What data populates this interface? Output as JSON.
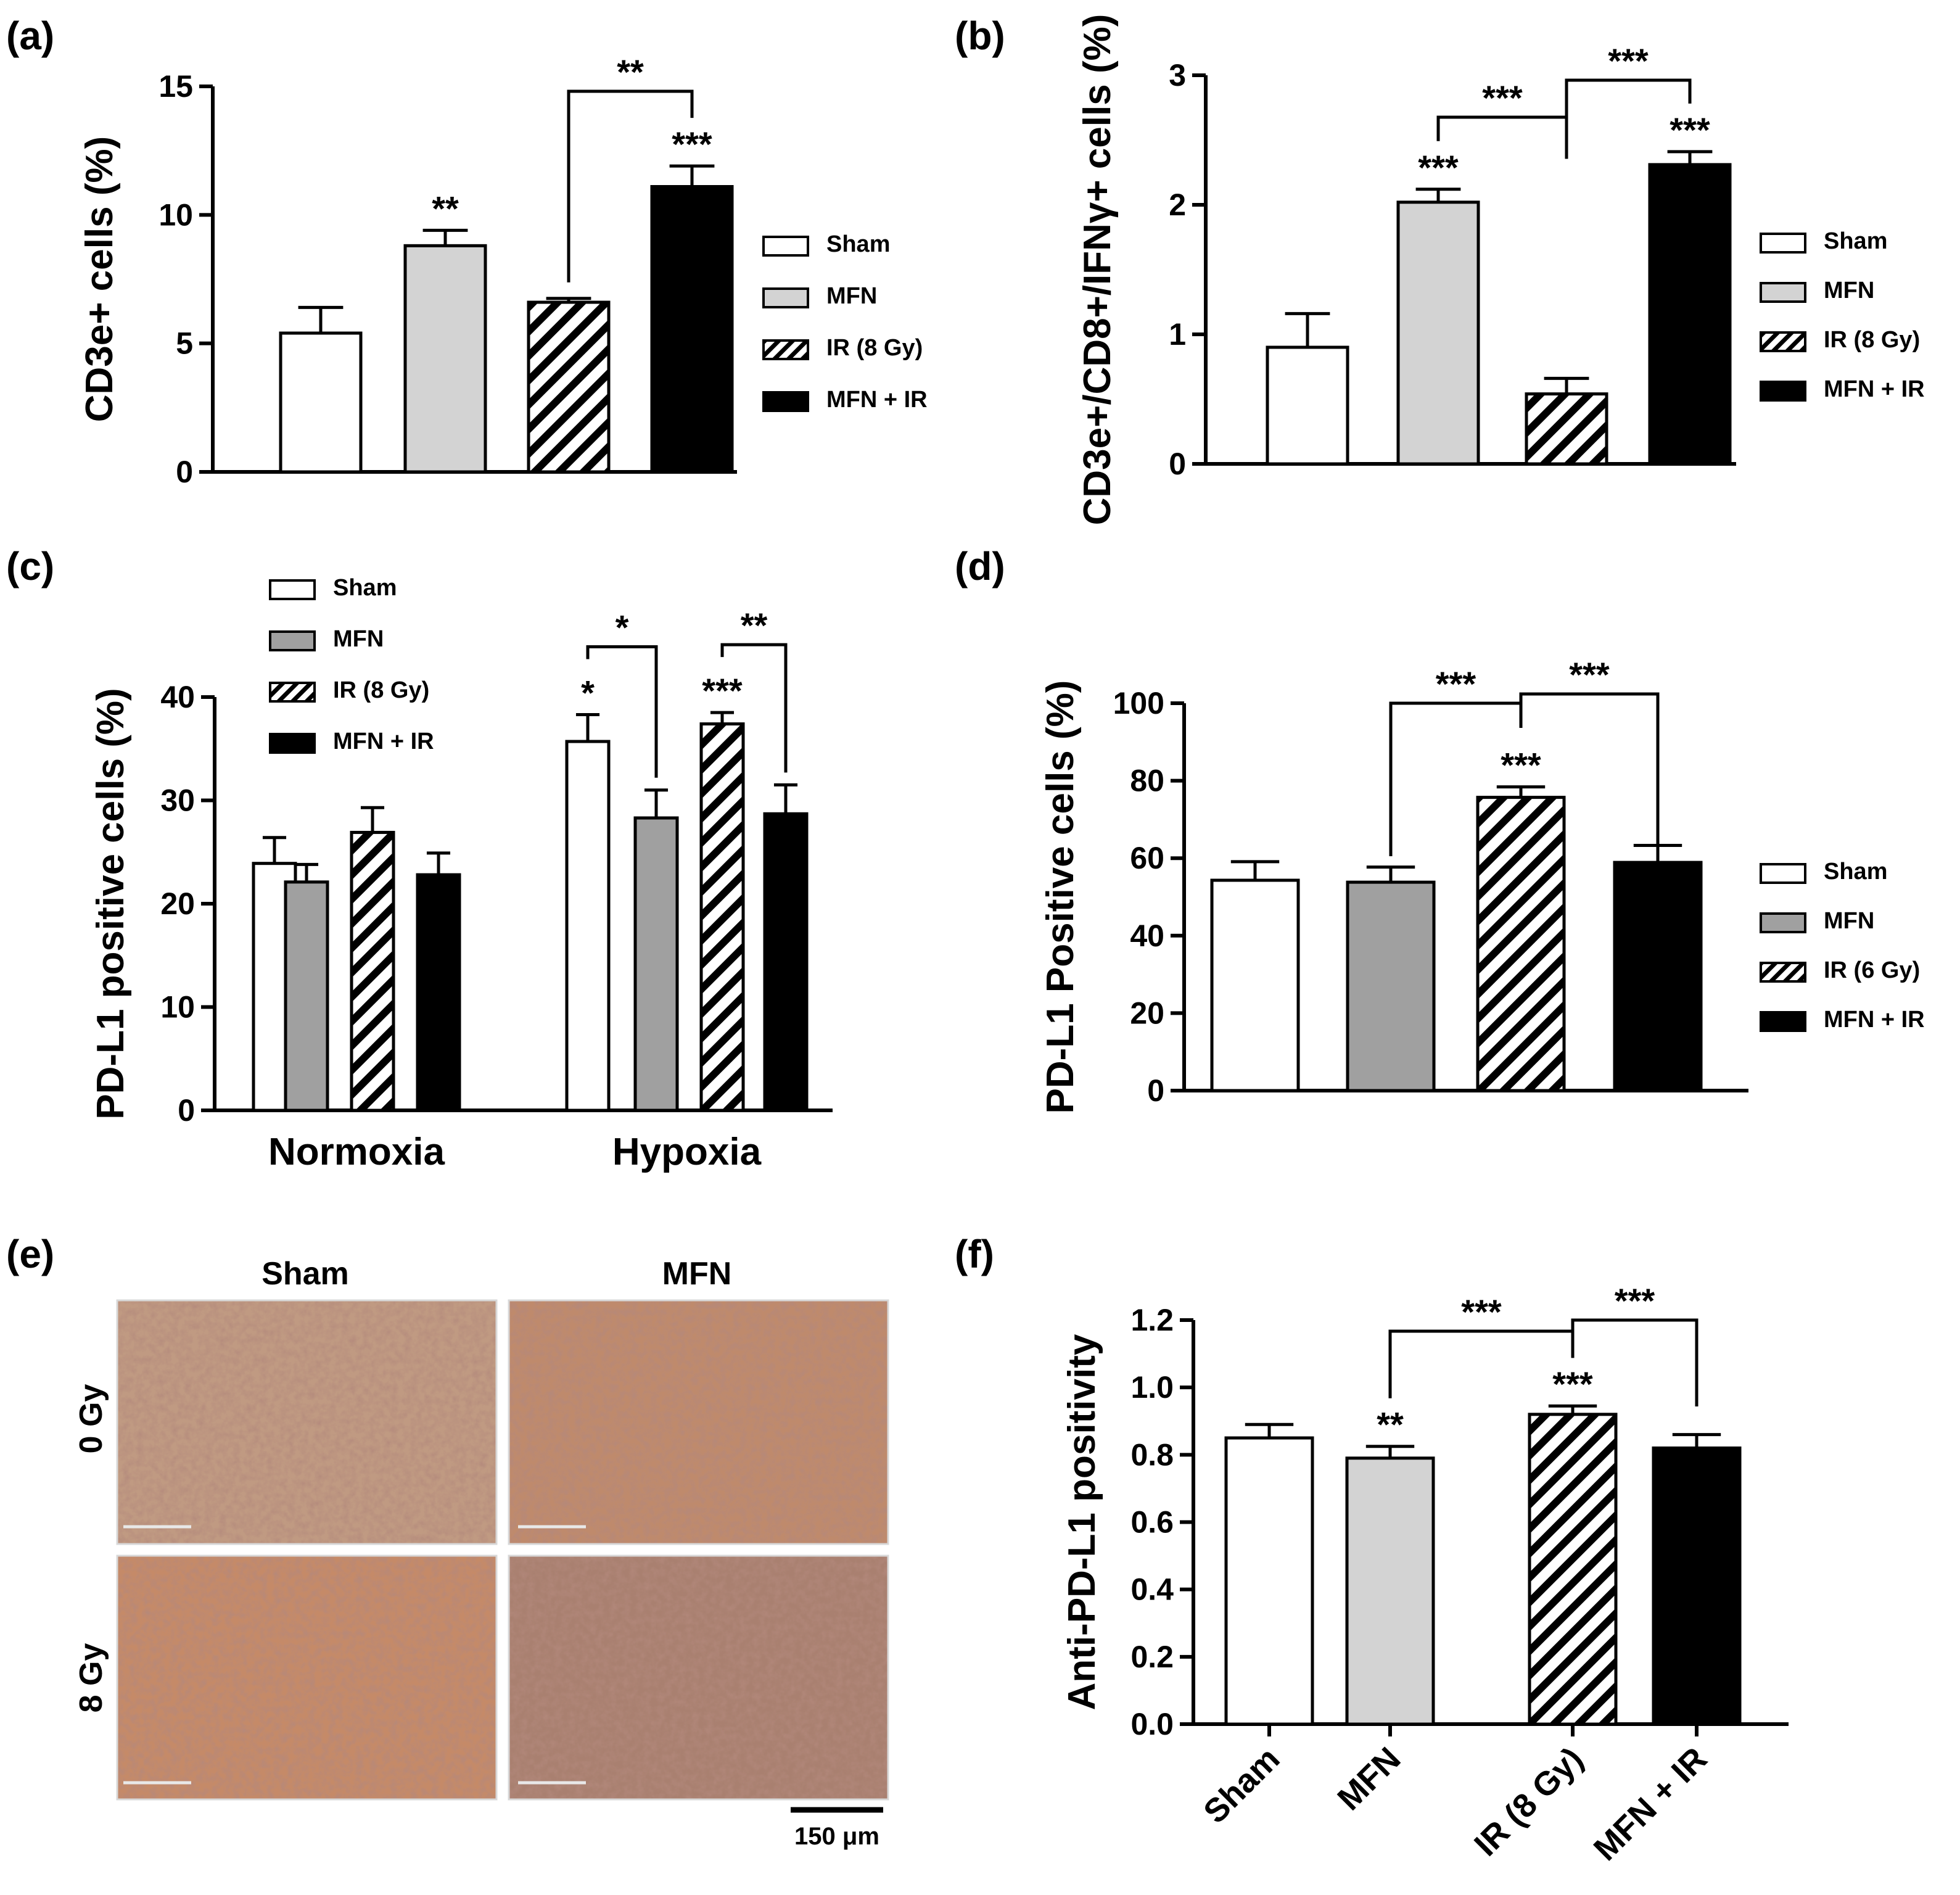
{
  "colors": {
    "sham": "#ffffff",
    "mfn_light": "#d3d3d3",
    "mfn_dark": "#a0a0a0",
    "ir": "hatched",
    "mfn_ir": "#000000",
    "stain_base": "#b06a4a"
  },
  "chart_data": [
    {
      "id": "a",
      "panel_label": "(a)",
      "type": "bar",
      "ylabel": "CD3e+ cells (%)",
      "ylabel_base": "CD3e",
      "ylabel_sup": "+",
      "ylabel_rest": " cells (%)",
      "ylim": [
        0,
        15
      ],
      "yticks": [
        "0",
        "5",
        "10",
        "15"
      ],
      "ytick_values": [
        0,
        5,
        10,
        15
      ],
      "categories": [
        "Sham",
        "MFN",
        "IR (8 Gy)",
        "MFN + IR"
      ],
      "values": [
        5.4,
        8.8,
        6.6,
        11.1
      ],
      "errors": [
        1.0,
        0.6,
        0.15,
        0.8
      ],
      "stars": [
        "",
        "**",
        "",
        "***"
      ],
      "brackets": [
        {
          "from": 2,
          "to": 3,
          "label": "**"
        }
      ],
      "legend": [
        "Sham",
        "MFN",
        "IR (8 Gy)",
        "MFN + IR"
      ],
      "legend_position": "right"
    },
    {
      "id": "b",
      "panel_label": "(b)",
      "type": "bar",
      "ylabel": "CD3e+/CD8+/IFNγ+ cells (%)",
      "ylim": [
        0,
        3
      ],
      "yticks": [
        "0",
        "1",
        "2",
        "3"
      ],
      "ytick_values": [
        0,
        1,
        2,
        3
      ],
      "categories": [
        "Sham",
        "MFN",
        "IR (8 Gy)",
        "MFN + IR"
      ],
      "values": [
        0.9,
        2.02,
        0.54,
        2.31
      ],
      "errors": [
        0.26,
        0.1,
        0.12,
        0.1
      ],
      "stars": [
        "",
        "***",
        "",
        "***"
      ],
      "brackets": [
        {
          "from": 1,
          "to": 2,
          "label": "***"
        },
        {
          "from": 2,
          "to": 3,
          "label": "***"
        }
      ],
      "legend": [
        "Sham",
        "MFN",
        "IR (8 Gy)",
        "MFN + IR"
      ],
      "legend_position": "right"
    },
    {
      "id": "c",
      "panel_label": "(c)",
      "type": "bar",
      "ylabel": "PD-L1 positive cells (%)",
      "ylim": [
        0,
        40
      ],
      "yticks": [
        "0",
        "10",
        "20",
        "30",
        "40"
      ],
      "ytick_values": [
        0,
        10,
        20,
        30,
        40
      ],
      "groups": [
        "Normoxia",
        "Hypoxia"
      ],
      "series": [
        {
          "name": "Sham",
          "values": [
            23.9,
            35.7
          ],
          "errors": [
            2.5,
            2.6
          ]
        },
        {
          "name": "MFN",
          "values": [
            22.1,
            28.3
          ],
          "errors": [
            1.7,
            2.7
          ]
        },
        {
          "name": "IR (8 Gy)",
          "values": [
            26.9,
            37.4
          ],
          "errors": [
            2.4,
            1.1
          ]
        },
        {
          "name": "MFN + IR",
          "values": [
            22.8,
            28.7
          ],
          "errors": [
            2.1,
            2.8
          ]
        }
      ],
      "stars": [
        [
          "",
          "",
          "",
          ""
        ],
        [
          "*",
          "",
          "***",
          ""
        ]
      ],
      "brackets": [
        {
          "group": 1,
          "from": 0,
          "to": 1,
          "label": "*"
        },
        {
          "group": 1,
          "from": 2,
          "to": 3,
          "label": "**"
        }
      ],
      "legend": [
        "Sham",
        "MFN",
        "IR (8 Gy)",
        "MFN + IR"
      ],
      "legend_position": "top-left"
    },
    {
      "id": "d",
      "panel_label": "(d)",
      "type": "bar",
      "ylabel": "PD-L1 Positive cells (%)",
      "ylim": [
        0,
        100
      ],
      "yticks": [
        "0",
        "20",
        "40",
        "60",
        "80",
        "100"
      ],
      "ytick_values": [
        0,
        20,
        40,
        60,
        80,
        100
      ],
      "categories": [
        "Sham",
        "MFN",
        "IR (6 Gy)",
        "MFN + IR"
      ],
      "values": [
        54.3,
        53.8,
        75.7,
        58.9
      ],
      "errors": [
        4.8,
        3.9,
        2.7,
        4.4
      ],
      "stars": [
        "",
        "",
        "***",
        ""
      ],
      "brackets": [
        {
          "from": 1,
          "to": 2,
          "label": "***"
        },
        {
          "from": 2,
          "to": 3,
          "label": "***"
        }
      ],
      "legend": [
        "Sham",
        "MFN",
        "IR (6 Gy)",
        "MFN + IR"
      ],
      "legend_position": "right"
    },
    {
      "id": "f",
      "panel_label": "(f)",
      "type": "bar",
      "ylabel": "Anti-PD-L1 positivity",
      "ylim": [
        0,
        1.2
      ],
      "yticks": [
        "0.0",
        "0.2",
        "0.4",
        "0.6",
        "0.8",
        "1.0",
        "1.2"
      ],
      "ytick_values": [
        0,
        0.2,
        0.4,
        0.6,
        0.8,
        1.0,
        1.2
      ],
      "categories": [
        "Sham",
        "MFN",
        "IR (8 Gy)",
        "MFN + IR"
      ],
      "values": [
        0.85,
        0.79,
        0.92,
        0.82
      ],
      "errors": [
        0.04,
        0.035,
        0.025,
        0.04
      ],
      "stars": [
        "",
        "**",
        "***",
        ""
      ],
      "brackets": [
        {
          "from": 1,
          "to": 2,
          "label": "***"
        },
        {
          "from": 2,
          "to": 3,
          "label": "***"
        }
      ],
      "xtick_labels": [
        "Sham",
        "MFN",
        "IR (8 Gy)",
        "MFN + IR"
      ]
    }
  ],
  "panel_e": {
    "panel_label": "(e)",
    "column_headers": [
      "Sham",
      "MFN"
    ],
    "row_labels": [
      "0 Gy",
      "8 Gy"
    ],
    "scale_bar_label": "150 μm"
  }
}
